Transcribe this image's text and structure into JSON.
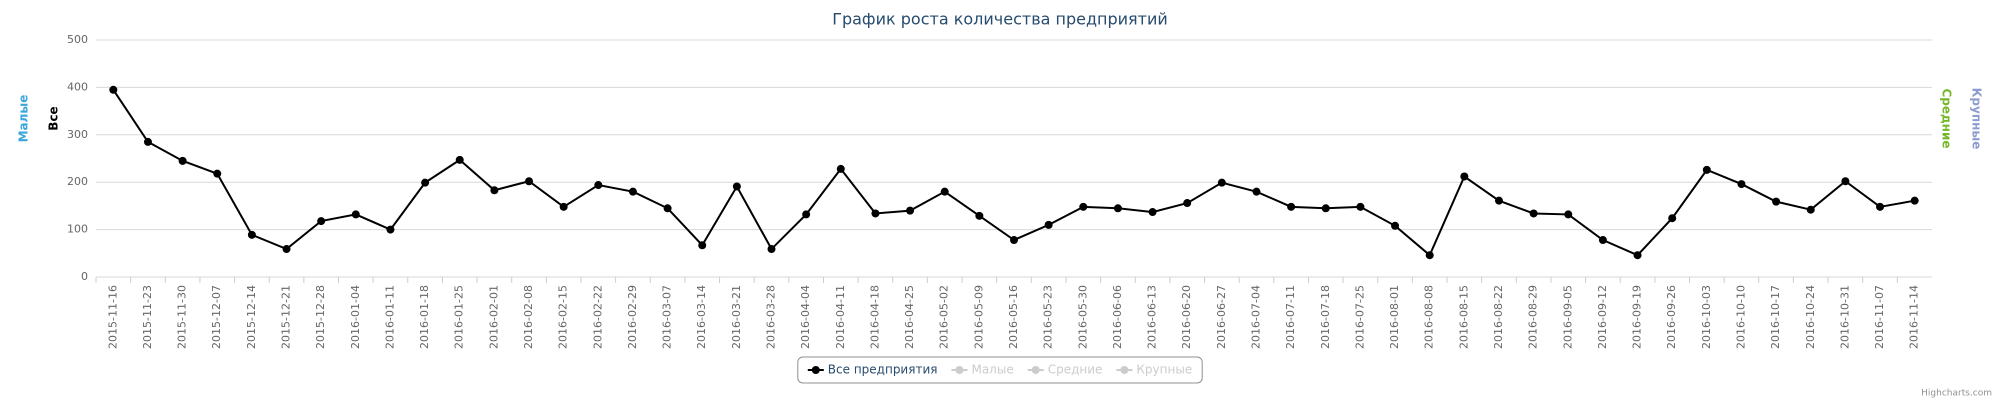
{
  "chart_data": {
    "type": "line",
    "title": "График роста количества предприятий",
    "categories": [
      "2015-11-16",
      "2015-11-23",
      "2015-11-30",
      "2015-12-07",
      "2015-12-14",
      "2015-12-21",
      "2015-12-28",
      "2016-01-04",
      "2016-01-11",
      "2016-01-18",
      "2016-01-25",
      "2016-02-01",
      "2016-02-08",
      "2016-02-15",
      "2016-02-22",
      "2016-02-29",
      "2016-03-07",
      "2016-03-14",
      "2016-03-21",
      "2016-03-28",
      "2016-04-04",
      "2016-04-11",
      "2016-04-18",
      "2016-04-25",
      "2016-05-02",
      "2016-05-09",
      "2016-05-16",
      "2016-05-23",
      "2016-05-30",
      "2016-06-06",
      "2016-06-13",
      "2016-06-20",
      "2016-06-27",
      "2016-07-04",
      "2016-07-11",
      "2016-07-18",
      "2016-07-25",
      "2016-08-01",
      "2016-08-08",
      "2016-08-15",
      "2016-08-22",
      "2016-08-29",
      "2016-09-05",
      "2016-09-12",
      "2016-09-19",
      "2016-09-26",
      "2016-10-03",
      "2016-10-10",
      "2016-10-17",
      "2016-10-24",
      "2016-10-31",
      "2016-11-07",
      "2016-11-14"
    ],
    "series": [
      {
        "name": "Все предприятия",
        "color": "#000000",
        "values": [
          395,
          285,
          245,
          218,
          89,
          59,
          118,
          132,
          100,
          199,
          247,
          183,
          202,
          148,
          194,
          180,
          145,
          67,
          191,
          59,
          132,
          228,
          134,
          140,
          180,
          129,
          78,
          110,
          148,
          145,
          137,
          156,
          199,
          180,
          148,
          145,
          148,
          108,
          46,
          212,
          161,
          134,
          132,
          78,
          46,
          124,
          226,
          196,
          159,
          142,
          202,
          148,
          161
        ]
      }
    ],
    "hidden_series": [
      {
        "name": "Малые"
      },
      {
        "name": "Средние"
      },
      {
        "name": "Крупные"
      }
    ],
    "axis_titles": [
      {
        "text": "Малые",
        "color": "#3aa6dd",
        "side": "left"
      },
      {
        "text": "Все",
        "color": "#000000",
        "side": "left"
      },
      {
        "text": "Средние",
        "color": "#76b82a",
        "side": "right"
      },
      {
        "text": "Крупные",
        "color": "#8c9bd0",
        "side": "right"
      }
    ],
    "ylim": [
      0,
      500
    ],
    "yticks": [
      0,
      100,
      200,
      300,
      400,
      500
    ],
    "grid": true,
    "legend": "bottom",
    "credits": "Highcharts.com"
  }
}
